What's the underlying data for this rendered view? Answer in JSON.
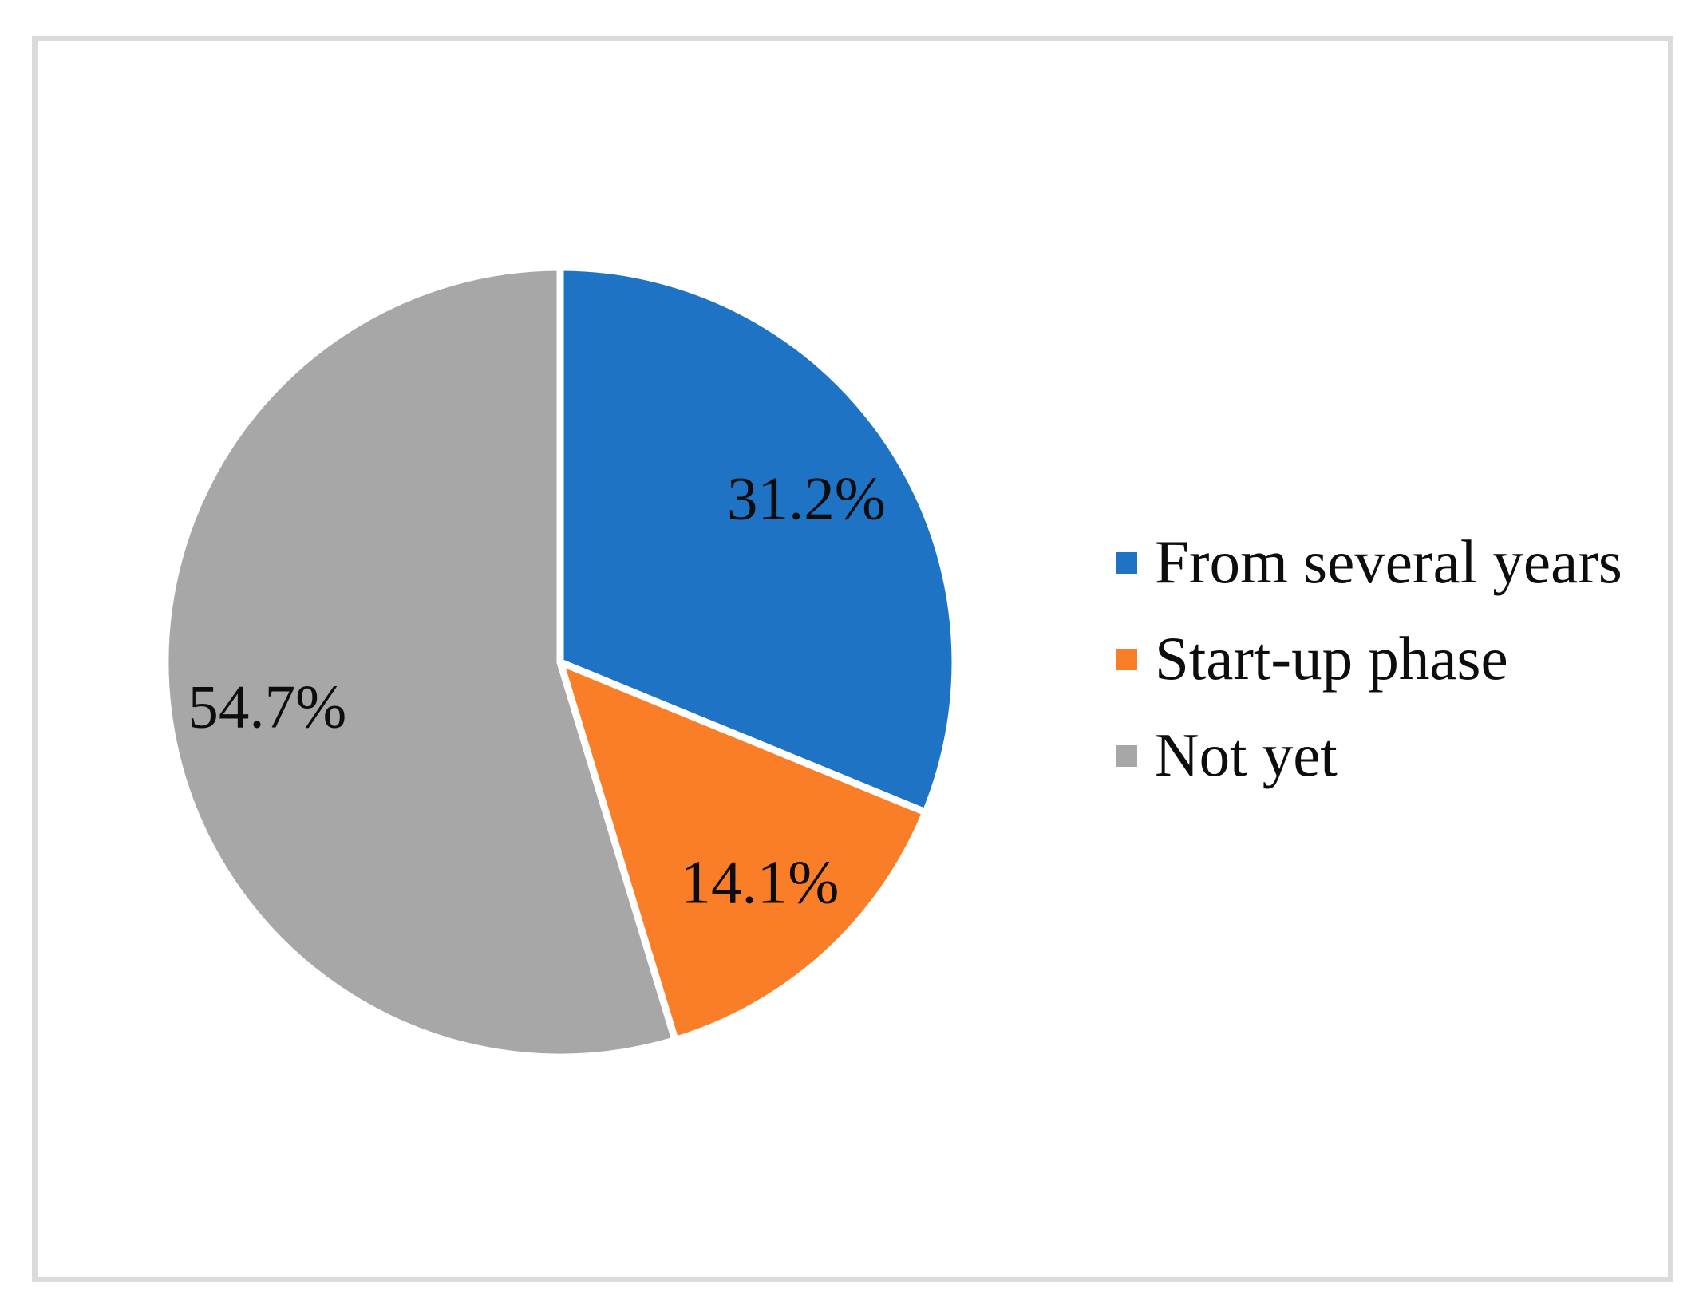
{
  "chart_data": {
    "type": "pie",
    "title": "",
    "legend_position": "right",
    "direction": "clockwise",
    "start_angle_deg": 0,
    "label_color": "#000000",
    "slice_separator_color": "#FFFFFF",
    "slices": [
      {
        "id": "from-several-years",
        "name": "From several years",
        "value": 31.2,
        "display_label": "31.2%",
        "color": "#1E73C5"
      },
      {
        "id": "start-up-phase",
        "name": "Start-up phase",
        "value": 14.1,
        "display_label": "14.1%",
        "color": "#FA7E27"
      },
      {
        "id": "not-yet",
        "name": "Not yet",
        "value": 54.7,
        "display_label": "54.7%",
        "color": "#A7A7A7"
      }
    ]
  },
  "frame": {
    "border_color": "#DBDBDB",
    "background": "#FFFFFF"
  }
}
